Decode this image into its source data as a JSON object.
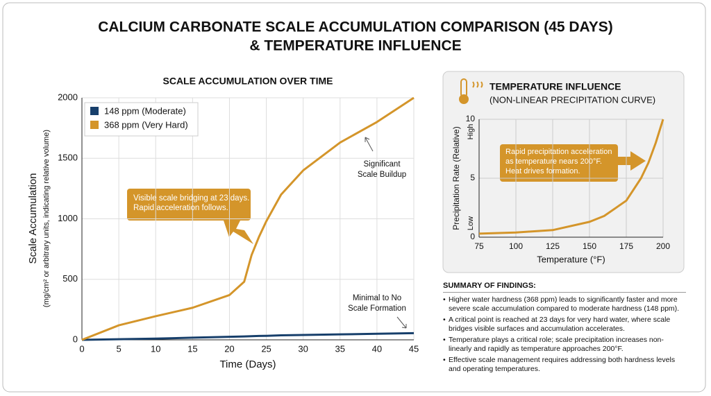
{
  "title": [
    "CALCIUM CARBONATE SCALE ACCUMULATION COMPARISON (45 DAYS)",
    "& TEMPERATURE INFLUENCE"
  ],
  "chart_data": [
    {
      "type": "line",
      "title": "SCALE ACCUMULATION OVER TIME",
      "x_label": "Time (Days)",
      "y_label": "Scale Accumulation",
      "y_sublabel": "(mg/cm² or arbitrary units, indicating relative volume)",
      "x": [
        0,
        5,
        10,
        15,
        20,
        22,
        23,
        24,
        25,
        27,
        30,
        35,
        40,
        45
      ],
      "series": [
        {
          "name": "148 ppm (Moderate)",
          "color": "#173f6b",
          "values": [
            0,
            5,
            10,
            18,
            25,
            28,
            30,
            32,
            33,
            37,
            40,
            45,
            50,
            55
          ]
        },
        {
          "name": "368 ppm (Very Hard)",
          "color": "#d4952a",
          "values": [
            0,
            120,
            195,
            265,
            370,
            480,
            700,
            850,
            980,
            1200,
            1400,
            1630,
            1800,
            2000
          ]
        }
      ],
      "xlim": [
        0,
        45
      ],
      "xticks": [
        0,
        5,
        10,
        15,
        20,
        25,
        30,
        35,
        40,
        45
      ],
      "ylim": [
        0,
        2000
      ],
      "yticks": [
        0,
        500,
        1000,
        1500,
        2000
      ],
      "grid": true,
      "legend": "upper left",
      "annotations": [
        [
          "Visible scale bridging at 23 days.",
          "Rapid acceleration follows."
        ],
        [
          "Significant",
          "Scale Buildup"
        ],
        [
          "Minimal to No",
          "Scale Formation"
        ]
      ]
    },
    {
      "type": "line",
      "title": "TEMPERATURE INFLUENCE",
      "subtitle": "(NON-LINEAR PRECIPITATION CURVE)",
      "x_label": "Temperature (°F)",
      "y_label": "Precipitation Rate (Relative)",
      "x": [
        75,
        100,
        125,
        150,
        160,
        175,
        185,
        190,
        195,
        200
      ],
      "values": [
        0.3,
        0.4,
        0.6,
        1.3,
        1.8,
        3.1,
        5,
        6.3,
        8,
        10
      ],
      "color": "#d4952a",
      "xlim": [
        75,
        200
      ],
      "xticks": [
        75,
        100,
        125,
        150,
        175,
        200
      ],
      "ylim": [
        0,
        10
      ],
      "yticks": [
        0,
        5,
        10
      ],
      "y_range_labels": [
        "Low",
        "High"
      ],
      "grid": true,
      "annotations": [
        [
          "Rapid precipitation acceleration",
          "as temperature nears 200°F.",
          "Heat drives formation."
        ]
      ]
    }
  ],
  "summary": {
    "title": "SUMMARY OF FINDINGS:",
    "items": [
      "Higher water hardness (368 ppm) leads to significantly faster and more severe scale accumulation compared to moderate hardness (148 ppm).",
      "A critical point is reached at 23 days for very hard water, where scale bridges visible surfaces and accumulation accelerates.",
      "Temperature plays a critical role; scale precipitation increases non-linearly and rapidly as temperature approaches 200°F.",
      "Effective scale management requires addressing both hardness levels and operating temperatures."
    ]
  }
}
